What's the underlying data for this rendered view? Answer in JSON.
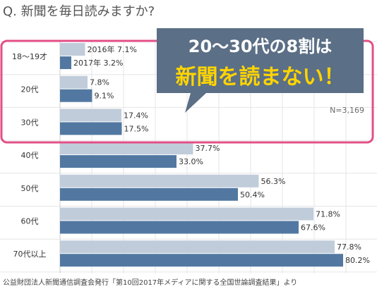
{
  "title": "Q. 新聞を毎日読みますか?",
  "callout": {
    "line1": "20～30代の8割は",
    "line2": "新聞を読まない！"
  },
  "n_label": "N=3,169",
  "source": "公益財団法人新聞通信調査会発行「第10回2017年メディアに関する全国世論調査結果」より",
  "colors": {
    "series_2016": "#c1ccdb",
    "series_2017": "#5278a1",
    "highlight": "#e34f86",
    "callout": "#5b6f86",
    "callout_emphasis": "#ffd400",
    "grid": "#e6e6e6"
  },
  "chart_data": {
    "type": "bar",
    "orientation": "horizontal",
    "title": "Q. 新聞を毎日読みますか?",
    "categories": [
      "18～19才",
      "20代",
      "30代",
      "40代",
      "50代",
      "60代",
      "70代以上"
    ],
    "series": [
      {
        "name": "2016年",
        "values": [
          7.1,
          7.8,
          17.4,
          37.7,
          56.3,
          71.8,
          77.8
        ]
      },
      {
        "name": "2017年",
        "values": [
          3.2,
          9.1,
          17.5,
          33.0,
          50.4,
          67.6,
          80.2
        ]
      }
    ],
    "value_labels": [
      [
        "2016年  7.1%",
        "7.8%",
        "17.4%",
        "37.7%",
        "56.3%",
        "71.8%",
        "77.8%"
      ],
      [
        "2017年  3.2%",
        "9.1%",
        "17.5%",
        "33.0%",
        "50.4%",
        "67.6%",
        "80.2%"
      ]
    ],
    "unit": "%",
    "grid": true,
    "highlight_categories": [
      "18～19才",
      "20代",
      "30代"
    ]
  }
}
